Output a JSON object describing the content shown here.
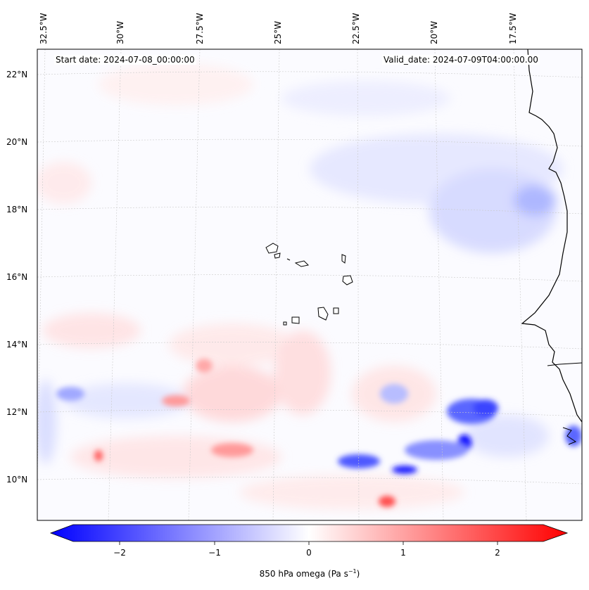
{
  "header": {
    "start_date": "Start date: 2024-07-08_00:00:00",
    "valid_date": "Valid_date: 2024-07-09T04:00:00.00"
  },
  "axes": {
    "lon_labels": [
      "32.5°W",
      "30°W",
      "27.5°W",
      "25°W",
      "22.5°W",
      "20°W",
      "17.5°W"
    ],
    "lat_labels": [
      "22°N",
      "20°N",
      "18°N",
      "16°N",
      "14°N",
      "12°N",
      "10°N"
    ]
  },
  "colorbar": {
    "label": "850 hPa omega (Pa s",
    "label_sup": "−1",
    "label_close": ")",
    "ticks": [
      "−2",
      "−1",
      "0",
      "1",
      "2"
    ],
    "range": [
      -2.8,
      2.8
    ],
    "colors": {
      "neg": "#0000ff",
      "mid": "#ffffff",
      "pos": "#ff0000"
    }
  },
  "islands": [
    "Santo Antão",
    "São Vicente",
    "São Nicolau",
    "Sal",
    "Boa Vista",
    "Maio",
    "Santiago",
    "Fogo",
    "Brava"
  ]
}
